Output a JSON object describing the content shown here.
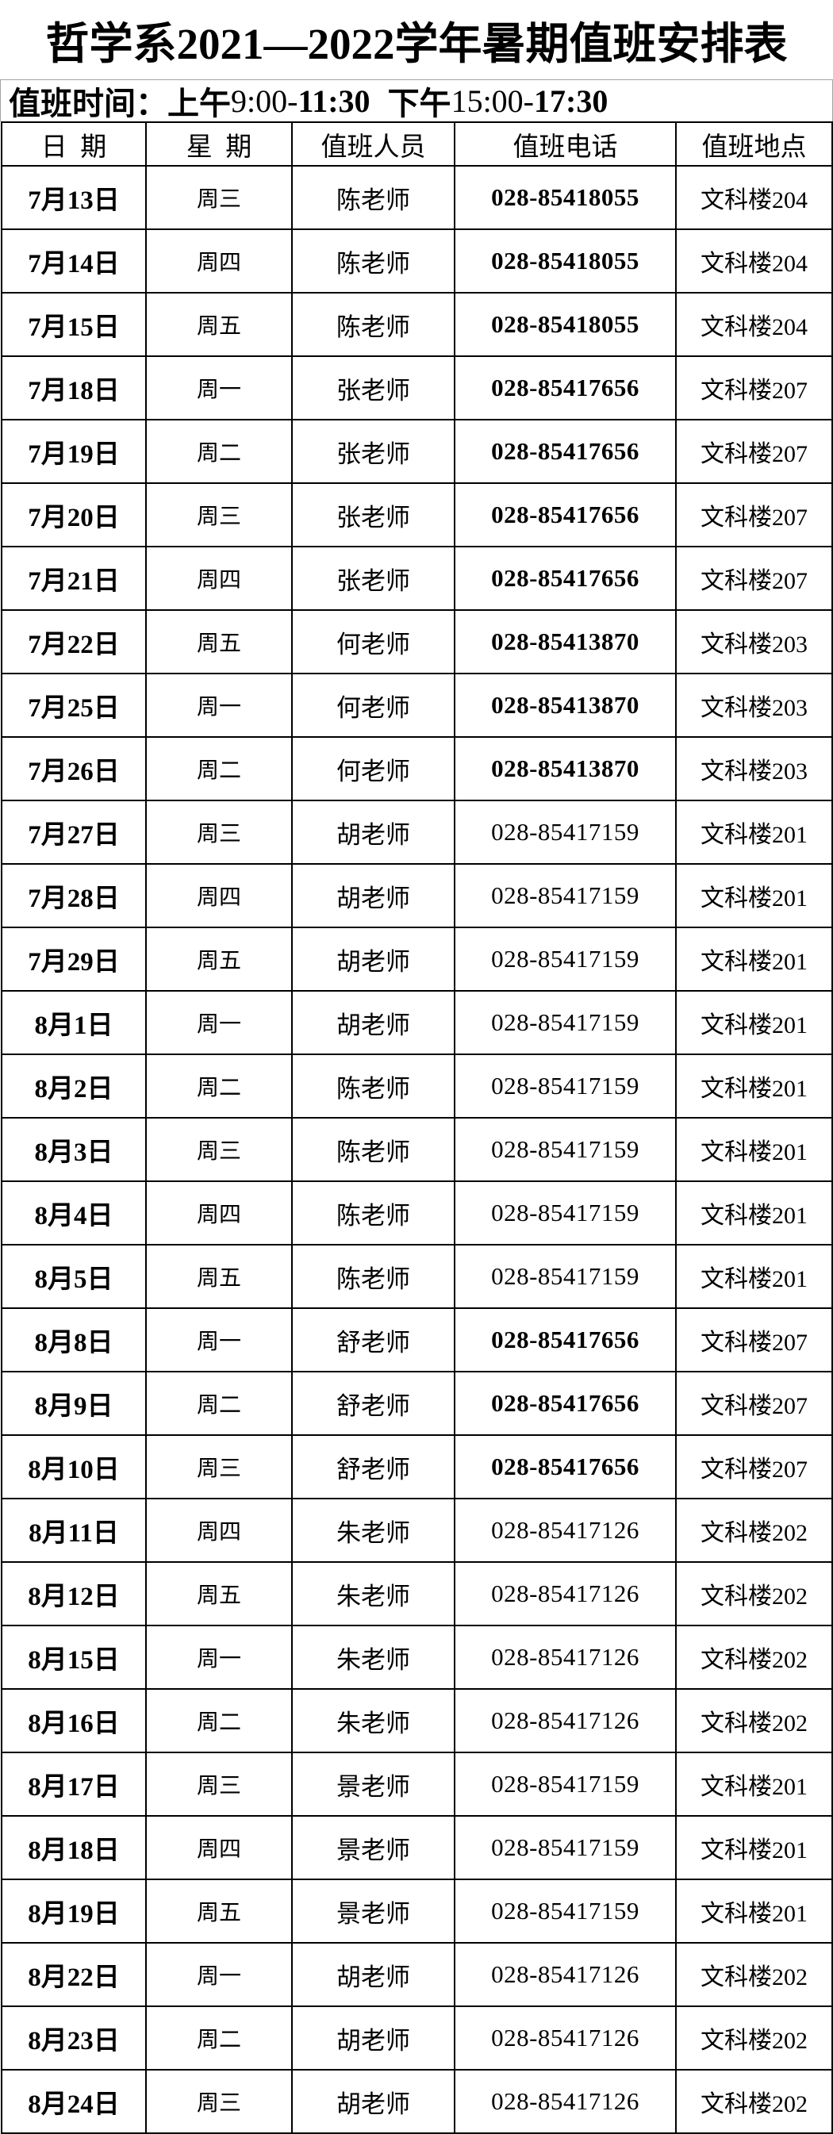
{
  "title": "哲学系2021—2022学年暑期值班安排表",
  "subtitle": {
    "label": "值班时间：",
    "morning_period": "上午",
    "morning_start": "9:00-",
    "morning_end": "11:30",
    "afternoon_period": "下午",
    "afternoon_start": "15:00-",
    "afternoon_end": "17:30"
  },
  "table": {
    "headers": [
      "日  期",
      "星  期",
      "值班人员",
      "值班电话",
      "值班地点"
    ],
    "rows": [
      {
        "date": "7月13日",
        "week": "周三",
        "person": "陈老师",
        "phone": "028-85418055",
        "phone_bold": true,
        "location": "文科楼204"
      },
      {
        "date": "7月14日",
        "week": "周四",
        "person": "陈老师",
        "phone": "028-85418055",
        "phone_bold": true,
        "location": "文科楼204"
      },
      {
        "date": "7月15日",
        "week": "周五",
        "person": "陈老师",
        "phone": "028-85418055",
        "phone_bold": true,
        "location": "文科楼204"
      },
      {
        "date": "7月18日",
        "week": "周一",
        "person": "张老师",
        "phone": "028-85417656",
        "phone_bold": true,
        "location": "文科楼207"
      },
      {
        "date": "7月19日",
        "week": "周二",
        "person": "张老师",
        "phone": "028-85417656",
        "phone_bold": true,
        "location": "文科楼207"
      },
      {
        "date": "7月20日",
        "week": "周三",
        "person": "张老师",
        "phone": "028-85417656",
        "phone_bold": true,
        "location": "文科楼207"
      },
      {
        "date": "7月21日",
        "week": "周四",
        "person": "张老师",
        "phone": "028-85417656",
        "phone_bold": true,
        "location": "文科楼207"
      },
      {
        "date": "7月22日",
        "week": "周五",
        "person": "何老师",
        "phone": "028-85413870",
        "phone_bold": true,
        "location": "文科楼203"
      },
      {
        "date": "7月25日",
        "week": "周一",
        "person": "何老师",
        "phone": "028-85413870",
        "phone_bold": true,
        "location": "文科楼203"
      },
      {
        "date": "7月26日",
        "week": "周二",
        "person": "何老师",
        "phone": "028-85413870",
        "phone_bold": true,
        "location": "文科楼203"
      },
      {
        "date": "7月27日",
        "week": "周三",
        "person": "胡老师",
        "phone": "028-85417159",
        "phone_bold": false,
        "location": "文科楼201"
      },
      {
        "date": "7月28日",
        "week": "周四",
        "person": "胡老师",
        "phone": "028-85417159",
        "phone_bold": false,
        "location": "文科楼201"
      },
      {
        "date": "7月29日",
        "week": "周五",
        "person": "胡老师",
        "phone": "028-85417159",
        "phone_bold": false,
        "location": "文科楼201"
      },
      {
        "date": "8月1日",
        "week": "周一",
        "person": "胡老师",
        "phone": "028-85417159",
        "phone_bold": false,
        "location": "文科楼201"
      },
      {
        "date": "8月2日",
        "week": "周二",
        "person": "陈老师",
        "phone": "028-85417159",
        "phone_bold": false,
        "location": "文科楼201"
      },
      {
        "date": "8月3日",
        "week": "周三",
        "person": "陈老师",
        "phone": "028-85417159",
        "phone_bold": false,
        "location": "文科楼201"
      },
      {
        "date": "8月4日",
        "week": "周四",
        "person": "陈老师",
        "phone": "028-85417159",
        "phone_bold": false,
        "location": "文科楼201"
      },
      {
        "date": "8月5日",
        "week": "周五",
        "person": "陈老师",
        "phone": "028-85417159",
        "phone_bold": false,
        "location": "文科楼201"
      },
      {
        "date": "8月8日",
        "week": "周一",
        "person": "舒老师",
        "phone": "028-85417656",
        "phone_bold": true,
        "location": "文科楼207"
      },
      {
        "date": "8月9日",
        "week": "周二",
        "person": "舒老师",
        "phone": "028-85417656",
        "phone_bold": true,
        "location": "文科楼207"
      },
      {
        "date": "8月10日",
        "week": "周三",
        "person": "舒老师",
        "phone": "028-85417656",
        "phone_bold": true,
        "location": "文科楼207"
      },
      {
        "date": "8月11日",
        "week": "周四",
        "person": "朱老师",
        "phone": "028-85417126",
        "phone_bold": false,
        "location": "文科楼202"
      },
      {
        "date": "8月12日",
        "week": "周五",
        "person": "朱老师",
        "phone": "028-85417126",
        "phone_bold": false,
        "location": "文科楼202"
      },
      {
        "date": "8月15日",
        "week": "周一",
        "person": "朱老师",
        "phone": "028-85417126",
        "phone_bold": false,
        "location": "文科楼202"
      },
      {
        "date": "8月16日",
        "week": "周二",
        "person": "朱老师",
        "phone": "028-85417126",
        "phone_bold": false,
        "location": "文科楼202"
      },
      {
        "date": "8月17日",
        "week": "周三",
        "person": "景老师",
        "phone": "028-85417159",
        "phone_bold": false,
        "location": "文科楼201"
      },
      {
        "date": "8月18日",
        "week": "周四",
        "person": "景老师",
        "phone": "028-85417159",
        "phone_bold": false,
        "location": "文科楼201"
      },
      {
        "date": "8月19日",
        "week": "周五",
        "person": "景老师",
        "phone": "028-85417159",
        "phone_bold": false,
        "location": "文科楼201"
      },
      {
        "date": "8月22日",
        "week": "周一",
        "person": "胡老师",
        "phone": "028-85417126",
        "phone_bold": false,
        "location": "文科楼202"
      },
      {
        "date": "8月23日",
        "week": "周二",
        "person": "胡老师",
        "phone": "028-85417126",
        "phone_bold": false,
        "location": "文科楼202"
      },
      {
        "date": "8月24日",
        "week": "周三",
        "person": "胡老师",
        "phone": "028-85417126",
        "phone_bold": false,
        "location": "文科楼202"
      }
    ]
  }
}
